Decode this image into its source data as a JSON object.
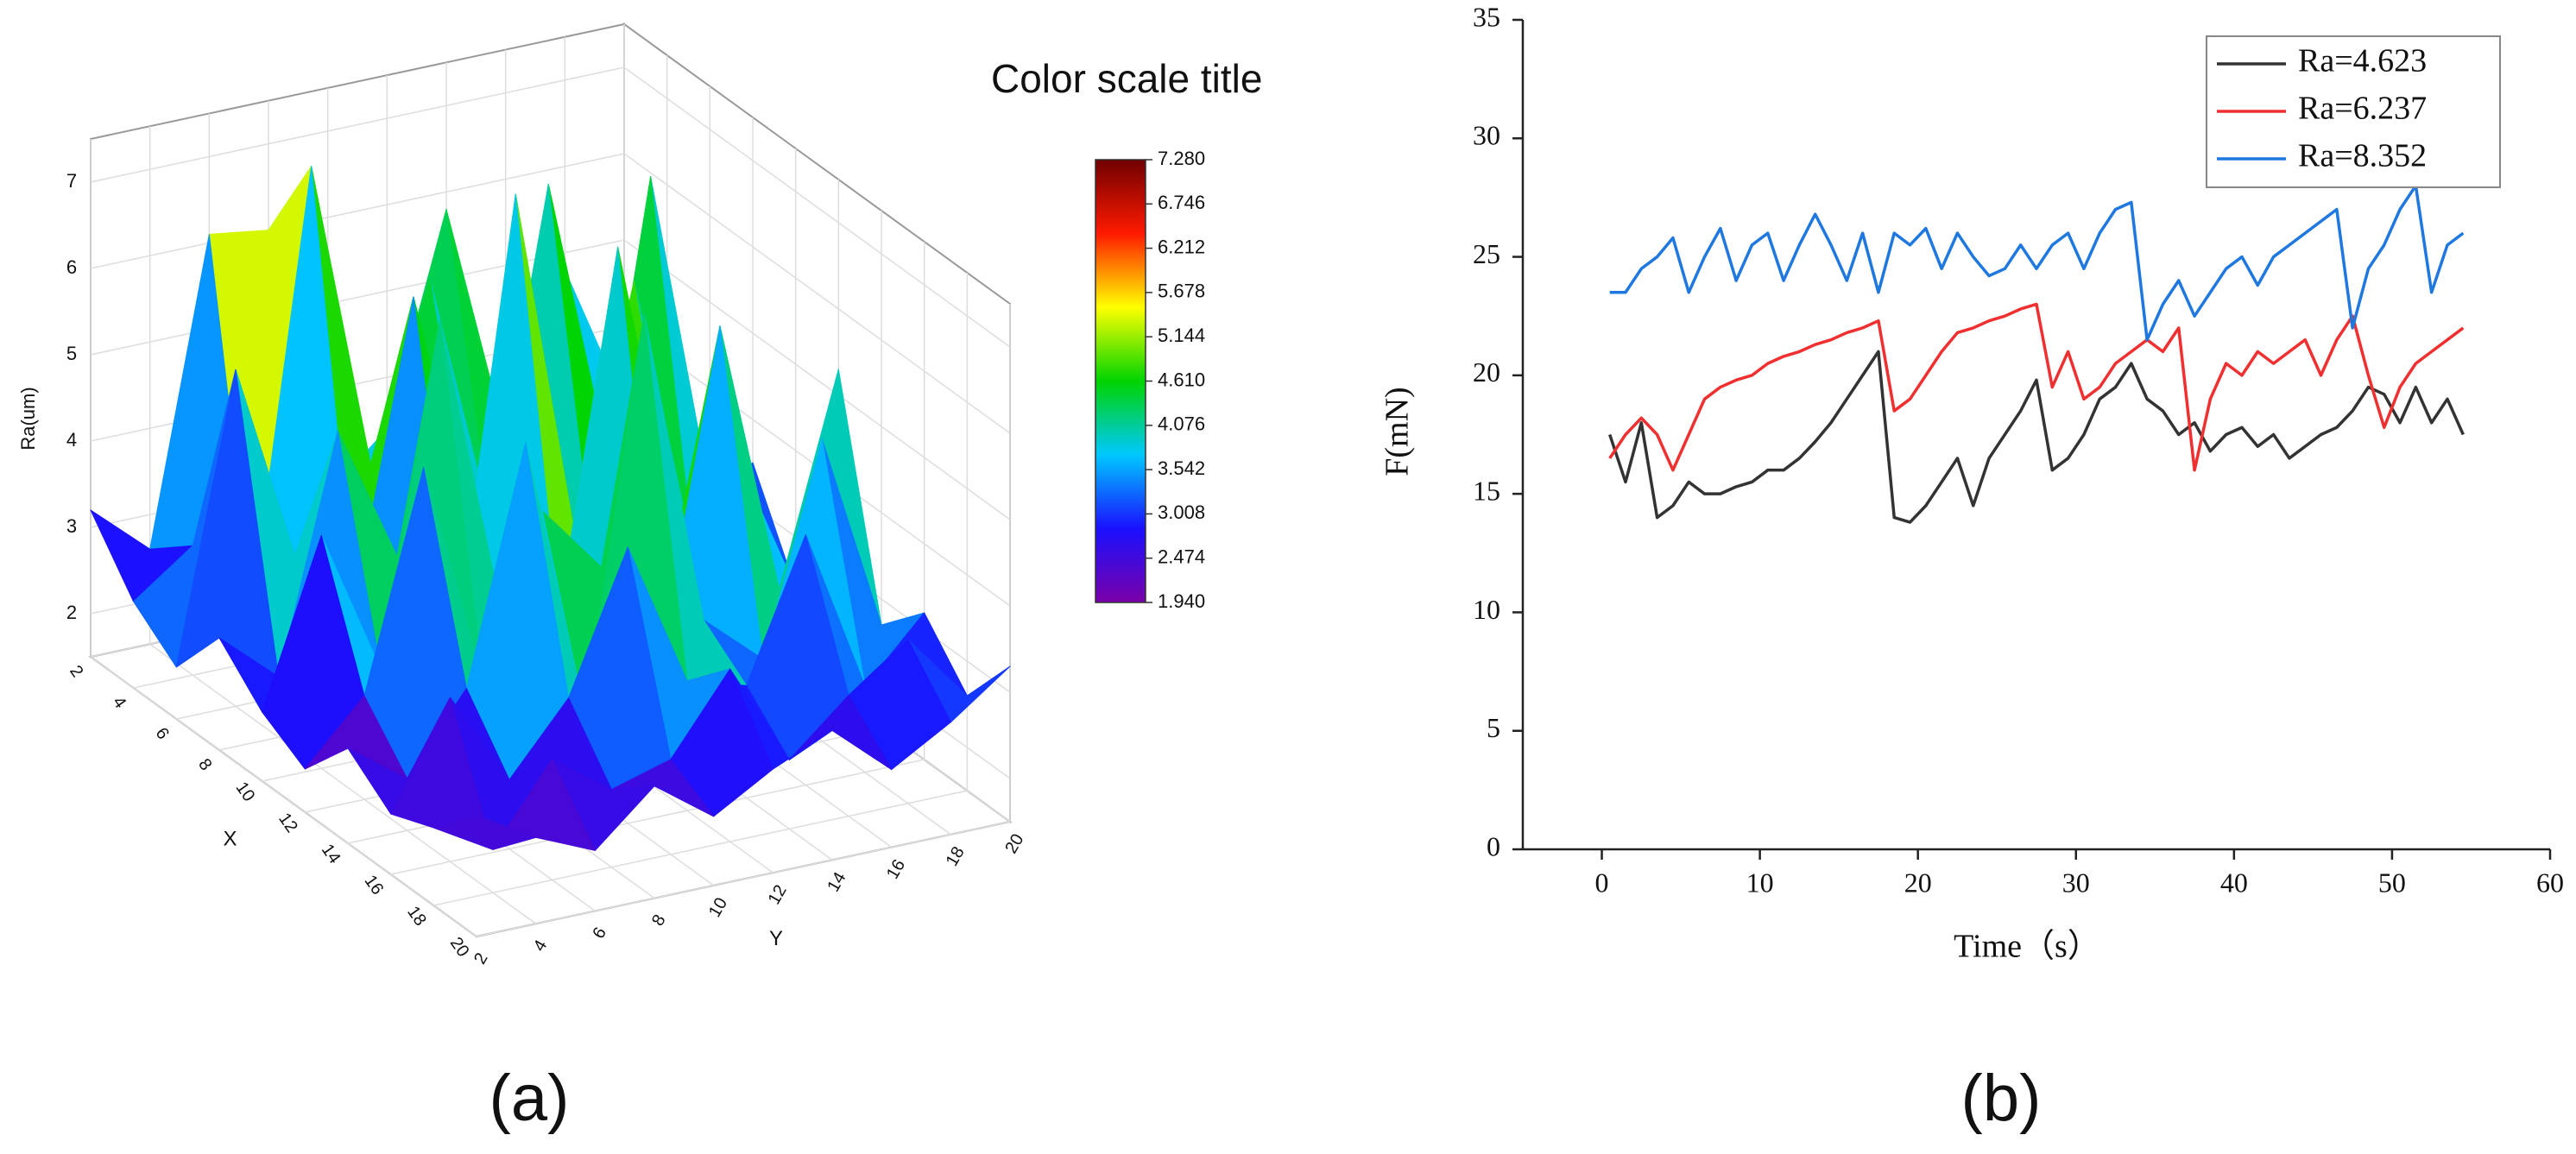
{
  "chart_data": [
    {
      "type": "surface",
      "panel_label": "(a)",
      "x_label": "X",
      "y_label": "Y",
      "z_label": "Ra(um)",
      "x": [
        2,
        4,
        6,
        8,
        10,
        12,
        14,
        16,
        18,
        20
      ],
      "y": [
        2,
        4,
        6,
        8,
        10,
        12,
        14,
        16,
        18,
        20
      ],
      "z": [
        [
          3.2,
          2.6,
          6.1,
          6.0,
          2.8,
          3.4,
          5.8,
          3.0,
          4.8,
          3.1
        ],
        [
          2.5,
          3.0,
          2.2,
          7.1,
          3.5,
          5.5,
          2.6,
          6.3,
          3.0,
          4.2
        ],
        [
          2.1,
          5.4,
          3.1,
          2.4,
          5.8,
          2.9,
          4.6,
          2.5,
          6.6,
          2.8
        ],
        [
          2.8,
          2.2,
          4.9,
          3.3,
          2.3,
          7.2,
          3.1,
          5.9,
          2.6,
          3.5
        ],
        [
          2.3,
          4.2,
          2.5,
          6.4,
          3.0,
          2.7,
          6.8,
          3.3,
          4.1,
          2.4
        ],
        [
          2.0,
          2.7,
          5.2,
          2.6,
          4.4,
          3.6,
          2.5,
          6.1,
          2.9,
          5.3
        ],
        [
          2.6,
          2.1,
          3.0,
          5.7,
          2.4,
          6.9,
          3.2,
          2.6,
          5.0,
          2.7
        ],
        [
          2.2,
          3.4,
          2.3,
          3.1,
          4.7,
          3.0,
          2.8,
          4.4,
          2.5,
          3.2
        ],
        [
          2.4,
          2.0,
          2.9,
          2.4,
          2.6,
          3.5,
          2.3,
          2.9,
          3.4,
          2.6
        ],
        [
          2.9,
          2.5,
          2.2,
          2.8,
          2.3,
          2.7,
          3.0,
          2.4,
          2.8,
          3.3
        ]
      ],
      "xlim": [
        2,
        20
      ],
      "ylim": [
        2,
        20
      ],
      "zlim": [
        1.5,
        7.5
      ],
      "xticks": [
        2,
        4,
        6,
        8,
        10,
        12,
        14,
        16,
        18,
        20
      ],
      "yticks": [
        2,
        4,
        6,
        8,
        10,
        12,
        14,
        16,
        18,
        20
      ],
      "zticks": [
        2,
        3,
        4,
        5,
        6,
        7
      ],
      "colorbar": {
        "title": "Color scale title",
        "ticks": [
          {
            "value": 1.94,
            "label": "1.940"
          },
          2.474,
          3.008,
          3.542,
          4.076,
          {
            "value": 4.61,
            "label": "4.610"
          },
          5.144,
          5.678,
          6.212,
          6.746,
          {
            "value": 7.28,
            "label": "7.280"
          }
        ],
        "colormap": [
          "#7a00a8",
          "#1a10ff",
          "#00c8ff",
          "#00d400",
          "#ffff00",
          "#ff1a00",
          "#700000"
        ]
      },
      "grid": true
    },
    {
      "type": "line",
      "panel_label": "(b)",
      "x_label": "Time（s）",
      "y_label": "F(mN)",
      "x": [
        0.5,
        1.5,
        2.5,
        3.5,
        4.5,
        5.5,
        6.5,
        7.5,
        8.5,
        9.5,
        10.5,
        11.5,
        12.5,
        13.5,
        14.5,
        15.5,
        16.5,
        17.5,
        18.5,
        19.5,
        20.5,
        21.5,
        22.5,
        23.5,
        24.5,
        25.5,
        26.5,
        27.5,
        28.5,
        29.5,
        30.5,
        31.5,
        32.5,
        33.5,
        34.5,
        35.5,
        36.5,
        37.5,
        38.5,
        39.5,
        40.5,
        41.5,
        42.5,
        43.5,
        44.5,
        45.5,
        46.5,
        47.5,
        48.5,
        49.5,
        50.5,
        51.5,
        52.5,
        53.5,
        54.5
      ],
      "series": [
        {
          "name": "Ra=4.623",
          "color": "#333333",
          "values": [
            17.5,
            15.5,
            18,
            14,
            14.5,
            15.5,
            15,
            15,
            15.3,
            15.5,
            16,
            16,
            16.5,
            17.2,
            18,
            19,
            20,
            21,
            14,
            13.8,
            14.5,
            15.5,
            16.5,
            14.5,
            16.5,
            17.5,
            18.5,
            19.8,
            16,
            16.5,
            17.5,
            19,
            19.5,
            20.5,
            19,
            18.5,
            17.5,
            18,
            16.8,
            17.5,
            17.8,
            17,
            17.5,
            16.5,
            17,
            17.5,
            17.8,
            18.5,
            19.5,
            19.2,
            18,
            19.5,
            18,
            19,
            17.5
          ]
        },
        {
          "name": "Ra=6.237",
          "color": "#f03030",
          "values": [
            16.5,
            17.5,
            18.2,
            17.5,
            16,
            17.5,
            19,
            19.5,
            19.8,
            20,
            20.5,
            20.8,
            21,
            21.3,
            21.5,
            21.8,
            22,
            22.3,
            18.5,
            19,
            20,
            21,
            21.8,
            22,
            22.3,
            22.5,
            22.8,
            23,
            19.5,
            21,
            19,
            19.5,
            20.5,
            21,
            21.5,
            21,
            22,
            16,
            19,
            20.5,
            20,
            21,
            20.5,
            21,
            21.5,
            20,
            21.5,
            22.5,
            20,
            17.8,
            19.5,
            20.5,
            21,
            21.5,
            22
          ]
        },
        {
          "name": "Ra=8.352",
          "color": "#1f78e0",
          "values": [
            23.5,
            23.5,
            24.5,
            25,
            25.8,
            23.5,
            25,
            26.2,
            24,
            25.5,
            26,
            24,
            25.5,
            26.8,
            25.5,
            24,
            26,
            23.5,
            26,
            25.5,
            26.2,
            24.5,
            26,
            25,
            24.2,
            24.5,
            25.5,
            24.5,
            25.5,
            26,
            24.5,
            26,
            27,
            27.3,
            21.5,
            23,
            24,
            22.5,
            23.5,
            24.5,
            25,
            23.8,
            25,
            25.5,
            26,
            26.5,
            27,
            22,
            24.5,
            25.5,
            27,
            28,
            23.5,
            25.5,
            26
          ]
        }
      ],
      "xlim": [
        -5,
        60
      ],
      "ylim": [
        0,
        35
      ],
      "xticks": [
        0,
        10,
        20,
        30,
        40,
        50,
        60
      ],
      "yticks": [
        0,
        5,
        10,
        15,
        20,
        25,
        30,
        35
      ],
      "legend": "upper right"
    }
  ]
}
